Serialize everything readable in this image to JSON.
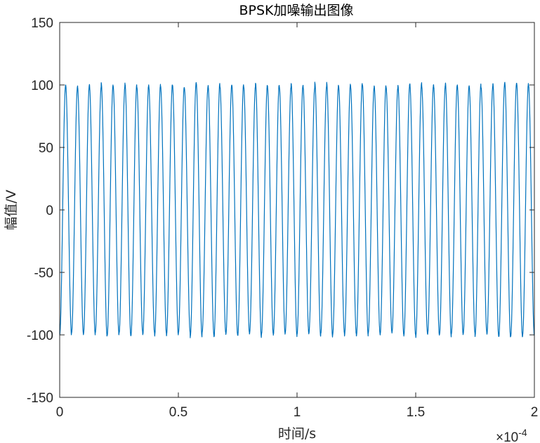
{
  "chart_data": {
    "type": "line",
    "title": "BPSK加噪输出图像",
    "xlabel": "时间/s",
    "ylabel": "幅值/V",
    "xlim": [
      0,
      2
    ],
    "ylim": [
      -150,
      150
    ],
    "x_exponent_label": "×10",
    "x_exponent_power": "-4",
    "x_scale": 0.0001,
    "x_ticks": [
      "0",
      "0.5",
      "1",
      "1.5",
      "2"
    ],
    "y_ticks": [
      "150",
      "100",
      "50",
      "0",
      "-50",
      "-100",
      "-150"
    ],
    "grid": false,
    "box": true,
    "colors": {
      "series": "#0072BD",
      "axes": "#262626",
      "background": "#ffffff"
    },
    "series": [
      {
        "amplitude": 100,
        "noise_peak_range": [
          98,
          102
        ],
        "cycles_in_window": 40,
        "frequency_hz": 200000,
        "x": [
          0,
          2
        ],
        "y_start": -100,
        "y_end": 40
      }
    ]
  }
}
